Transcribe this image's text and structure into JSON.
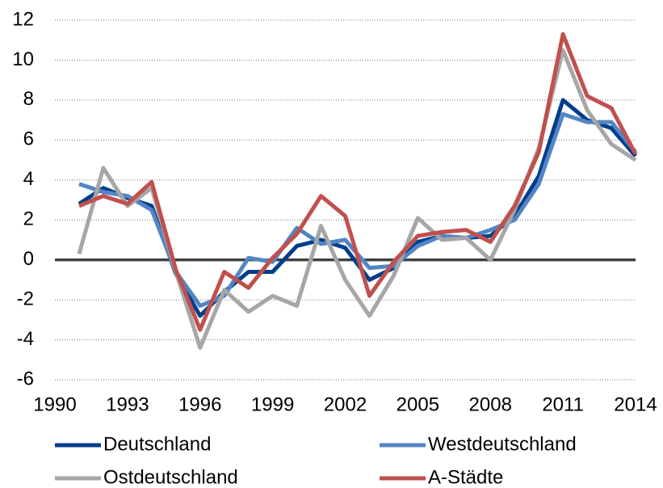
{
  "chart_data": {
    "type": "line",
    "x": [
      1991,
      1992,
      1993,
      1994,
      1995,
      1996,
      1997,
      1998,
      1999,
      2000,
      2001,
      2002,
      2003,
      2004,
      2005,
      2006,
      2007,
      2008,
      2009,
      2010,
      2011,
      2012,
      2013,
      2014
    ],
    "series": [
      {
        "name": "Deutschland",
        "color": "#003e8c",
        "values": [
          2.8,
          3.6,
          3.1,
          2.7,
          -0.7,
          -2.8,
          -1.6,
          -0.6,
          -0.6,
          0.7,
          1.0,
          0.6,
          -1.0,
          -0.4,
          0.9,
          1.2,
          1.1,
          1.2,
          2.2,
          4.2,
          8.0,
          7.0,
          6.6,
          5.2
        ]
      },
      {
        "name": "Westdeutschland",
        "color": "#5385c4",
        "values": [
          3.8,
          3.4,
          3.2,
          2.5,
          -0.6,
          -2.3,
          -1.8,
          0.1,
          -0.1,
          1.6,
          0.8,
          1.0,
          -0.4,
          -0.3,
          0.7,
          1.2,
          1.1,
          1.5,
          2.0,
          3.8,
          7.3,
          6.9,
          6.9,
          5.4
        ]
      },
      {
        "name": "Ostdeutschland",
        "color": "#a6a6a6",
        "values": [
          0.3,
          4.6,
          2.7,
          3.6,
          -0.6,
          -4.4,
          -1.5,
          -2.6,
          -1.8,
          -2.3,
          1.7,
          -1.0,
          -2.8,
          -0.8,
          2.1,
          1.0,
          1.1,
          0.0,
          2.5,
          5.6,
          10.5,
          7.5,
          5.8,
          5.0
        ]
      },
      {
        "name": "A-Städte",
        "color": "#c0504d",
        "values": [
          2.7,
          3.2,
          2.8,
          3.9,
          -0.5,
          -3.5,
          -0.6,
          -1.4,
          0.1,
          1.3,
          3.2,
          2.2,
          -1.8,
          -0.1,
          1.2,
          1.4,
          1.5,
          0.9,
          2.7,
          5.4,
          11.3,
          8.2,
          7.6,
          5.3
        ]
      }
    ],
    "xlim": [
      1990,
      2014
    ],
    "xticks": [
      1990,
      1993,
      1996,
      1999,
      2002,
      2005,
      2008,
      2011,
      2014
    ],
    "ylim": [
      -6,
      12
    ],
    "yticks": [
      -6,
      -4,
      -2,
      0,
      2,
      4,
      6,
      8,
      10,
      12
    ],
    "grid": true,
    "zero_line": true
  }
}
